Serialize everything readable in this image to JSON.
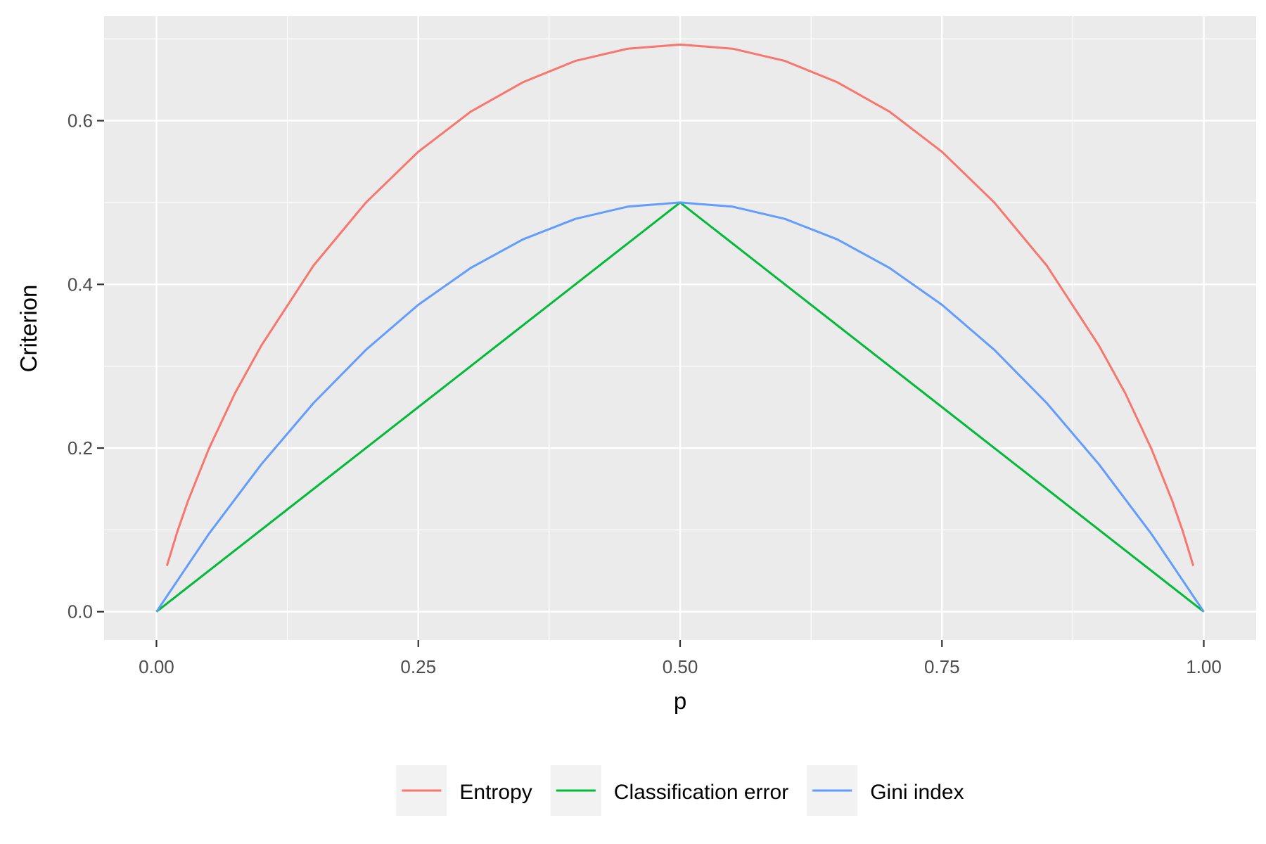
{
  "chart_data": {
    "type": "line",
    "xlabel": "p",
    "ylabel": "Criterion",
    "xlim": [
      -0.05,
      1.05
    ],
    "ylim": [
      -0.0346,
      0.7277
    ],
    "x_ticks": [
      0.0,
      0.25,
      0.5,
      0.75,
      1.0
    ],
    "x_tick_labels": [
      "0.00",
      "0.25",
      "0.50",
      "0.75",
      "1.00"
    ],
    "y_ticks": [
      0.0,
      0.2,
      0.4,
      0.6
    ],
    "y_tick_labels": [
      "0.0",
      "0.2",
      "0.4",
      "0.6"
    ],
    "grid": true,
    "legend_position": "bottom",
    "series": [
      {
        "name": "Entropy",
        "color": "#F8766D",
        "x": [
          0.01,
          0.02,
          0.03,
          0.05,
          0.075,
          0.1,
          0.15,
          0.2,
          0.25,
          0.3,
          0.35,
          0.4,
          0.45,
          0.5,
          0.55,
          0.6,
          0.65,
          0.7,
          0.75,
          0.8,
          0.85,
          0.9,
          0.925,
          0.95,
          0.97,
          0.98,
          0.99
        ],
        "values": [
          0.056,
          0.098,
          0.135,
          0.199,
          0.267,
          0.325,
          0.423,
          0.5,
          0.562,
          0.611,
          0.647,
          0.673,
          0.688,
          0.693,
          0.688,
          0.673,
          0.647,
          0.611,
          0.562,
          0.5,
          0.423,
          0.325,
          0.267,
          0.199,
          0.135,
          0.098,
          0.056
        ]
      },
      {
        "name": "Classification error",
        "color": "#00BA38",
        "x": [
          0.0,
          0.5,
          1.0
        ],
        "values": [
          0.0,
          0.5,
          0.0
        ]
      },
      {
        "name": "Gini index",
        "color": "#619CFF",
        "x": [
          0.0,
          0.05,
          0.1,
          0.15,
          0.2,
          0.25,
          0.3,
          0.35,
          0.4,
          0.45,
          0.5,
          0.55,
          0.6,
          0.65,
          0.7,
          0.75,
          0.8,
          0.85,
          0.9,
          0.95,
          1.0
        ],
        "values": [
          0.0,
          0.095,
          0.18,
          0.255,
          0.32,
          0.375,
          0.42,
          0.455,
          0.48,
          0.495,
          0.5,
          0.495,
          0.48,
          0.455,
          0.42,
          0.375,
          0.32,
          0.255,
          0.18,
          0.095,
          0.0
        ]
      }
    ]
  }
}
